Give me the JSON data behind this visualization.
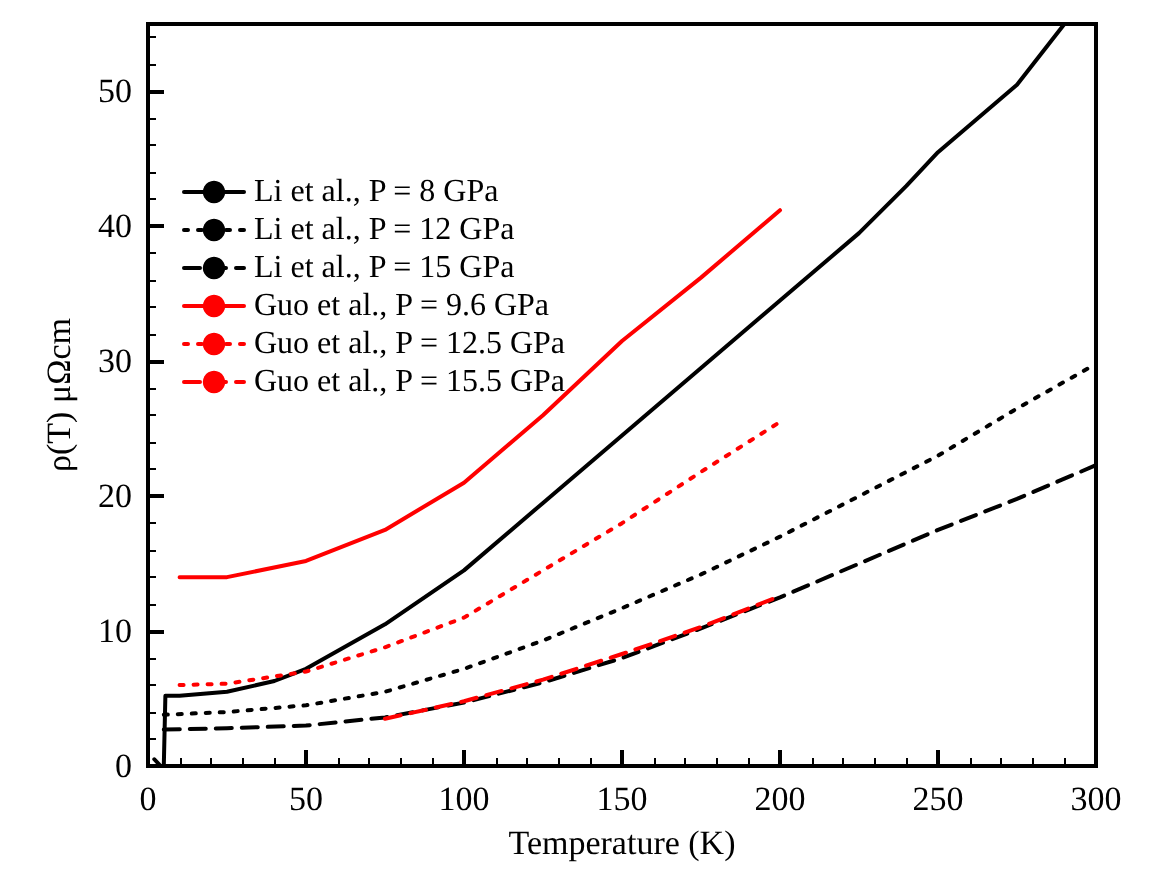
{
  "chart_data": {
    "type": "line",
    "xlabel": "Temperature (K)",
    "ylabel": "ρ(T) μΩcm",
    "xlim": [
      0,
      300
    ],
    "ylim": [
      0,
      55
    ],
    "xticks": [
      0,
      50,
      100,
      150,
      200,
      250,
      300
    ],
    "yticks": [
      0,
      10,
      20,
      30,
      40,
      50
    ],
    "grid": false,
    "legend": "top left",
    "marker": "none",
    "series": [
      {
        "name": "Li et al., P = 8 GPa",
        "color": "#000000",
        "line_style": "solid",
        "x": [
          2,
          4,
          5,
          5.5,
          10,
          25,
          40,
          50,
          75,
          100,
          125,
          150,
          175,
          200,
          225,
          240,
          250,
          275,
          290
        ],
        "values": [
          0.5,
          0,
          0,
          5.2,
          5.2,
          5.5,
          6.3,
          7.2,
          10.5,
          14.5,
          19.5,
          24.5,
          29.5,
          34.5,
          39.5,
          43,
          45.5,
          50.5,
          55
        ]
      },
      {
        "name": "Li et al., P = 12 GPa",
        "color": "#000000",
        "line_style": "dotted",
        "x": [
          5,
          25,
          50,
          75,
          100,
          125,
          150,
          175,
          200,
          225,
          250,
          275,
          300
        ],
        "values": [
          3.8,
          4,
          4.5,
          5.5,
          7.2,
          9.3,
          11.7,
          14.2,
          17,
          20,
          23,
          26.5,
          29.8
        ]
      },
      {
        "name": "Li et al., P = 15 GPa",
        "color": "#000000",
        "line_style": "dashed",
        "x": [
          5,
          25,
          50,
          75,
          100,
          125,
          150,
          175,
          200,
          225,
          250,
          275,
          300
        ],
        "values": [
          2.7,
          2.8,
          3,
          3.6,
          4.7,
          6.2,
          8,
          10.2,
          12.5,
          15,
          17.5,
          19.8,
          22.3
        ]
      },
      {
        "name": "Guo et al., P = 9.6 GPa",
        "color": "#ff0000",
        "line_style": "solid",
        "x": [
          10,
          25,
          50,
          75,
          100,
          125,
          150,
          175,
          200
        ],
        "values": [
          14,
          14,
          15.2,
          17.5,
          21,
          26,
          31.5,
          36.2,
          41.2
        ]
      },
      {
        "name": "Guo et al., P = 12.5 GPa",
        "color": "#ff0000",
        "line_style": "dotted",
        "x": [
          10,
          25,
          50,
          75,
          100,
          125,
          150,
          175,
          200
        ],
        "values": [
          6,
          6.1,
          7,
          8.8,
          11,
          14.5,
          18,
          21.8,
          25.5
        ]
      },
      {
        "name": "Guo et al., P = 15.5 GPa",
        "color": "#ff0000",
        "line_style": "dashed",
        "x": [
          75,
          100,
          125,
          150,
          175,
          200
        ],
        "values": [
          3.5,
          4.8,
          6.4,
          8.3,
          10.3,
          12.6
        ]
      }
    ]
  }
}
